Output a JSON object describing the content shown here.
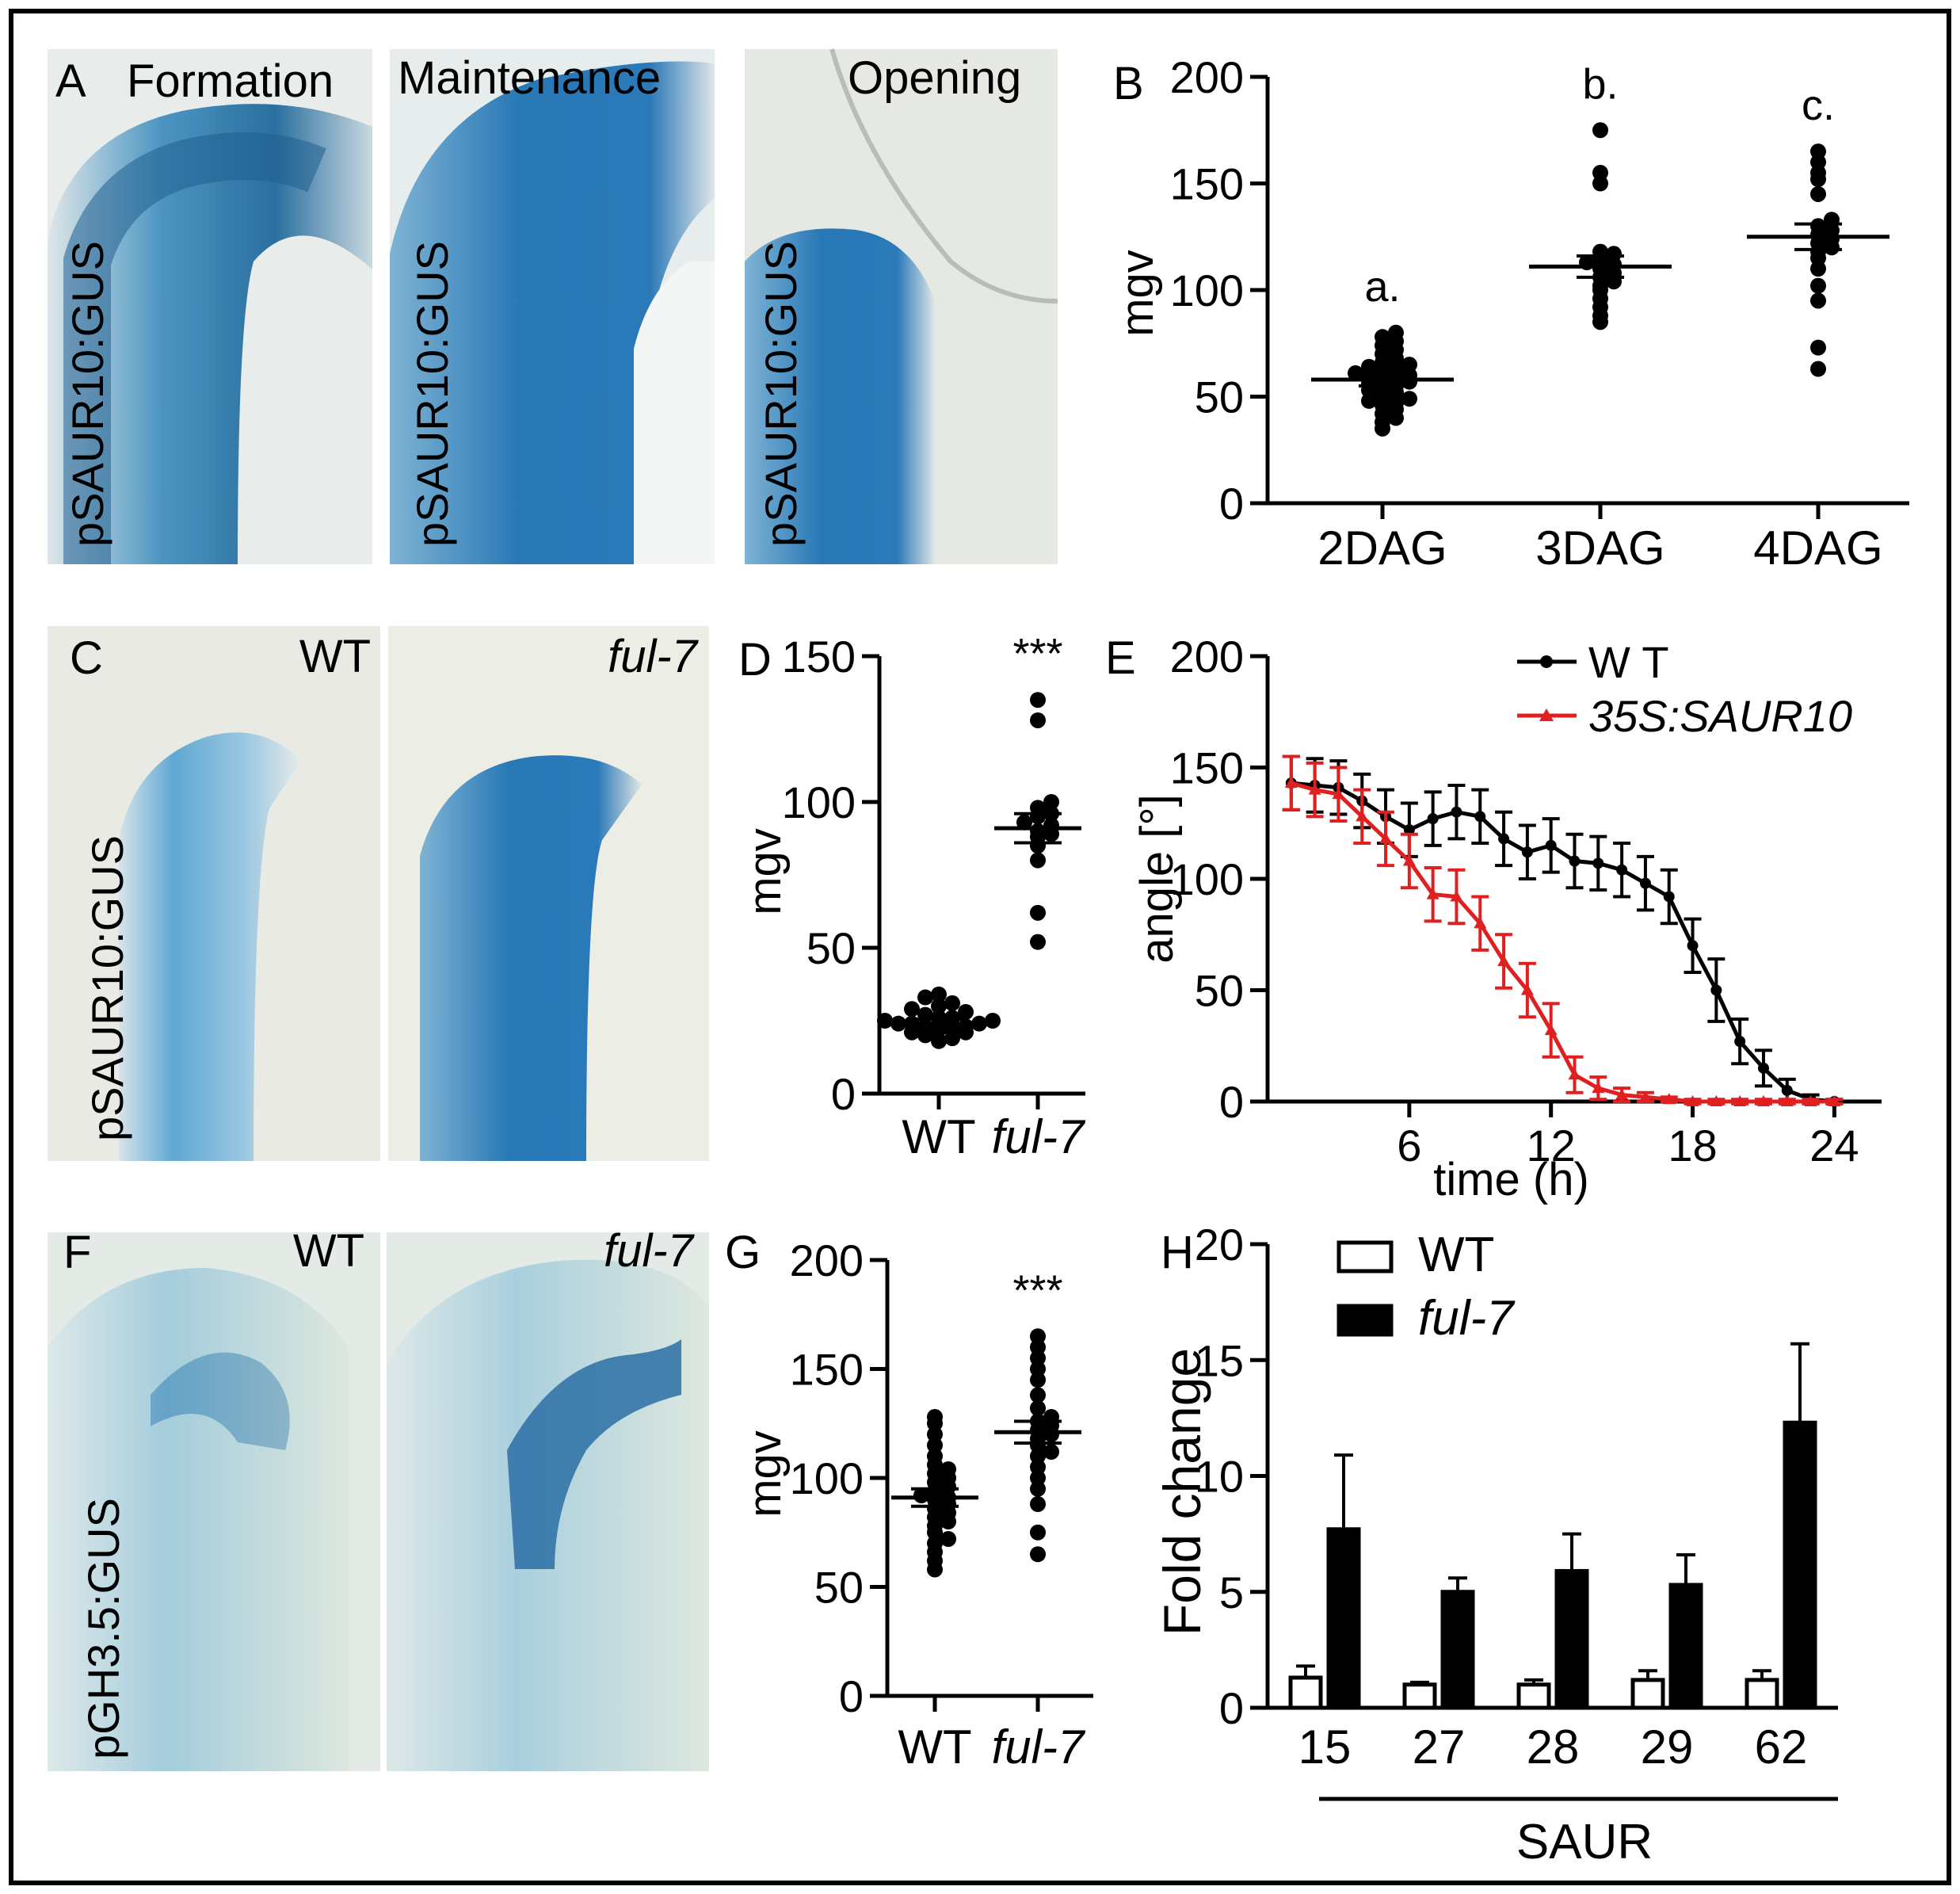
{
  "panels": {
    "A": {
      "letter": "A",
      "titles": [
        "Formation",
        "Maintenance",
        "Opening"
      ],
      "ylabel": "pSAUR10:GUS"
    },
    "C": {
      "letter": "C",
      "titles": [
        "WT",
        "ful-7"
      ],
      "ylabel": "pSAUR10:GUS"
    },
    "F": {
      "letter": "F",
      "titles": [
        "WT",
        "ful-7"
      ],
      "ylabel": "pGH3.5:GUS"
    },
    "B": {
      "letter": "B"
    },
    "D": {
      "letter": "D"
    },
    "E": {
      "letter": "E"
    },
    "G": {
      "letter": "G"
    },
    "H": {
      "letter": "H"
    }
  },
  "colors": {
    "gus_blue": "#2a78b4",
    "tissue_bg": "#e9ecea",
    "wt_line": "#000000",
    "saur10_line": "#e02020"
  },
  "chart_data": [
    {
      "id": "B",
      "type": "scatter",
      "ylabel": "mgv",
      "ylim": [
        0,
        200
      ],
      "yticks": [
        0,
        50,
        100,
        150,
        200
      ],
      "categories": [
        "2DAG",
        "3DAG",
        "4DAG"
      ],
      "groups": [
        {
          "name": "2DAG",
          "mean": 58,
          "sem": 3,
          "annotation": "a.",
          "values": [
            35,
            38,
            40,
            42,
            44,
            46,
            47,
            48,
            49,
            50,
            52,
            53,
            54,
            55,
            56,
            57,
            58,
            59,
            60,
            60,
            61,
            62,
            63,
            64,
            65,
            66,
            68,
            70,
            72,
            74,
            76,
            78,
            80
          ]
        },
        {
          "name": "3DAG",
          "mean": 111,
          "sem": 5,
          "annotation": "b.",
          "values": [
            85,
            88,
            92,
            96,
            100,
            102,
            104,
            106,
            108,
            110,
            112,
            113,
            115,
            117,
            118,
            150,
            155,
            175
          ]
        },
        {
          "name": "4DAG",
          "mean": 125,
          "sem": 6,
          "annotation": "c.",
          "values": [
            63,
            73,
            95,
            102,
            110,
            115,
            118,
            120,
            122,
            124,
            126,
            128,
            130,
            133,
            145,
            152,
            155,
            160,
            165
          ]
        }
      ],
      "grid": false
    },
    {
      "id": "D",
      "type": "scatter",
      "ylabel": "mgv",
      "ylim": [
        0,
        150
      ],
      "yticks": [
        0,
        50,
        100,
        150
      ],
      "categories": [
        "WT",
        "ful-7"
      ],
      "groups": [
        {
          "name": "WT",
          "mean": 24,
          "sem": 1.5,
          "annotation": "",
          "values": [
            18,
            19,
            20,
            21,
            21,
            22,
            22,
            23,
            23,
            24,
            24,
            24,
            25,
            25,
            26,
            26,
            27,
            28,
            29,
            30,
            31,
            33,
            34
          ]
        },
        {
          "name": "ful-7",
          "mean": 91,
          "sem": 5,
          "annotation": "***",
          "values": [
            52,
            62,
            80,
            85,
            88,
            89,
            90,
            92,
            93,
            95,
            96,
            98,
            100,
            128,
            135
          ]
        }
      ],
      "grid": false
    },
    {
      "id": "E",
      "type": "line",
      "xlabel": "time (h)",
      "ylabel": "angle [°]",
      "xlim": [
        0,
        26
      ],
      "ylim": [
        0,
        200
      ],
      "xticks": [
        6,
        12,
        18,
        24
      ],
      "yticks": [
        0,
        50,
        100,
        150,
        200
      ],
      "legend_position": "top-right",
      "series": [
        {
          "name": "W T",
          "color": "#000000",
          "marker": "circle",
          "x": [
            1,
            2,
            3,
            4,
            5,
            6,
            7,
            8,
            9,
            10,
            11,
            12,
            13,
            14,
            15,
            16,
            17,
            18,
            19,
            20,
            21,
            22,
            23,
            24
          ],
          "y": [
            143,
            142,
            141,
            135,
            128,
            122,
            127,
            130,
            128,
            118,
            112,
            115,
            108,
            107,
            104,
            98,
            92,
            70,
            50,
            27,
            15,
            5,
            1,
            0
          ],
          "err": [
            12,
            12,
            12,
            12,
            12,
            12,
            12,
            12,
            12,
            12,
            12,
            12,
            12,
            12,
            12,
            12,
            12,
            12,
            14,
            10,
            8,
            5,
            2,
            1
          ]
        },
        {
          "name": "35S:SAUR10",
          "color": "#e02020",
          "marker": "triangle",
          "x": [
            1,
            2,
            3,
            4,
            5,
            6,
            7,
            8,
            9,
            10,
            11,
            12,
            13,
            14,
            15,
            16,
            17,
            18,
            19,
            20,
            21,
            22,
            23,
            24
          ],
          "y": [
            143,
            140,
            138,
            128,
            118,
            108,
            93,
            92,
            80,
            63,
            50,
            32,
            12,
            6,
            3,
            2,
            1,
            0,
            0,
            0,
            0,
            0,
            0,
            0
          ],
          "err": [
            12,
            12,
            12,
            12,
            12,
            12,
            12,
            12,
            12,
            12,
            12,
            12,
            8,
            5,
            3,
            2,
            1,
            1,
            1,
            1,
            1,
            1,
            1,
            1
          ]
        }
      ],
      "grid": false
    },
    {
      "id": "G",
      "type": "scatter",
      "ylabel": "mgv",
      "ylim": [
        0,
        200
      ],
      "yticks": [
        0,
        50,
        100,
        150,
        200
      ],
      "categories": [
        "WT",
        "ful-7"
      ],
      "groups": [
        {
          "name": "WT",
          "mean": 91,
          "sem": 4,
          "annotation": "",
          "values": [
            58,
            62,
            66,
            70,
            72,
            75,
            78,
            80,
            82,
            84,
            86,
            88,
            90,
            91,
            92,
            94,
            96,
            98,
            100,
            102,
            104,
            106,
            110,
            115,
            120,
            125,
            128
          ]
        },
        {
          "name": "ful-7",
          "mean": 121,
          "sem": 5,
          "annotation": "***",
          "values": [
            65,
            75,
            88,
            95,
            100,
            105,
            110,
            112,
            115,
            118,
            120,
            122,
            124,
            126,
            128,
            132,
            138,
            145,
            150,
            155,
            160,
            165
          ]
        }
      ],
      "grid": false
    },
    {
      "id": "H",
      "type": "bar",
      "ylabel": "Fold change",
      "xlabel": "SAUR",
      "ylim": [
        0,
        20
      ],
      "yticks": [
        0,
        5,
        10,
        15,
        20
      ],
      "categories": [
        "15",
        "27",
        "28",
        "29",
        "62"
      ],
      "legend_position": "top-left",
      "series": [
        {
          "name": "WT",
          "values": [
            1.3,
            1.0,
            1.0,
            1.2,
            1.2
          ],
          "err": [
            0.5,
            0.1,
            0.2,
            0.4,
            0.4
          ],
          "color": "#ffffff"
        },
        {
          "name": "ful-7",
          "values": [
            7.7,
            5.0,
            5.9,
            5.3,
            12.3
          ],
          "err": [
            3.2,
            0.6,
            1.6,
            1.3,
            3.4
          ],
          "color": "#000000"
        }
      ],
      "grid": false
    }
  ]
}
